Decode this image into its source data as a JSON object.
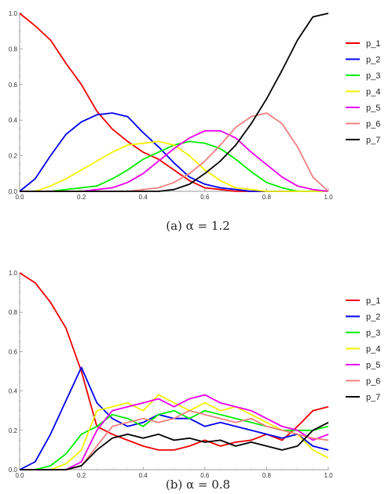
{
  "legend": [
    "p_1",
    "p_2",
    "p_3",
    "p_4",
    "p_5",
    "p_6",
    "p_7"
  ],
  "series_colors": [
    "#ee0000",
    "#0000ee",
    "#00ee00",
    "#f2f200",
    "#ee00ee",
    "#f08080",
    "#000000"
  ],
  "captions": [
    "(a)  α = 1.2",
    "(b)  α = 0.8"
  ],
  "chart_data": [
    {
      "type": "line",
      "xlim": [
        0,
        1.0
      ],
      "ylim": [
        0,
        1.0
      ],
      "x_ticks": [
        "0.0",
        "0.2",
        "0.4",
        "0.6",
        "0.8",
        "1.0"
      ],
      "y_ticks": [
        "0.0",
        "0.2",
        "0.4",
        "0.6",
        "0.8",
        "1.0"
      ],
      "grid": false,
      "legend_position": "right",
      "x": [
        0,
        0.05,
        0.1,
        0.15,
        0.2,
        0.25,
        0.3,
        0.35,
        0.4,
        0.45,
        0.5,
        0.55,
        0.6,
        0.65,
        0.7,
        0.75,
        0.8,
        0.85,
        0.9,
        0.95,
        1.0
      ],
      "series": [
        {
          "name": "p_1",
          "values": [
            1.0,
            0.93,
            0.85,
            0.72,
            0.6,
            0.45,
            0.35,
            0.28,
            0.22,
            0.18,
            0.12,
            0.06,
            0.02,
            0.01,
            0.0,
            0.0,
            0.0,
            0.0,
            0.0,
            0.0,
            0.0
          ]
        },
        {
          "name": "p_2",
          "values": [
            0.0,
            0.07,
            0.2,
            0.32,
            0.39,
            0.43,
            0.44,
            0.42,
            0.33,
            0.25,
            0.16,
            0.08,
            0.04,
            0.02,
            0.01,
            0.0,
            0.0,
            0.0,
            0.0,
            0.0,
            0.0
          ]
        },
        {
          "name": "p_3",
          "values": [
            0.0,
            0.0,
            0.0,
            0.01,
            0.02,
            0.03,
            0.07,
            0.12,
            0.18,
            0.22,
            0.26,
            0.28,
            0.27,
            0.24,
            0.18,
            0.11,
            0.05,
            0.02,
            0.0,
            0.0,
            0.0
          ]
        },
        {
          "name": "p_4",
          "values": [
            0.0,
            0.0,
            0.03,
            0.07,
            0.12,
            0.17,
            0.22,
            0.26,
            0.27,
            0.28,
            0.26,
            0.2,
            0.12,
            0.06,
            0.02,
            0.01,
            0.0,
            0.0,
            0.0,
            0.0,
            0.0
          ]
        },
        {
          "name": "p_5",
          "values": [
            0.0,
            0.0,
            0.0,
            0.0,
            0.0,
            0.01,
            0.02,
            0.05,
            0.1,
            0.17,
            0.24,
            0.3,
            0.34,
            0.34,
            0.3,
            0.22,
            0.15,
            0.08,
            0.03,
            0.01,
            0.0
          ]
        },
        {
          "name": "p_6",
          "values": [
            0.0,
            0.0,
            0.0,
            0.0,
            0.0,
            0.0,
            0.0,
            0.0,
            0.01,
            0.02,
            0.05,
            0.1,
            0.17,
            0.26,
            0.36,
            0.42,
            0.44,
            0.38,
            0.25,
            0.08,
            0.0
          ]
        },
        {
          "name": "p_7",
          "values": [
            0.0,
            0.0,
            0.0,
            0.0,
            0.0,
            0.0,
            0.0,
            0.0,
            0.0,
            0.0,
            0.01,
            0.04,
            0.1,
            0.17,
            0.26,
            0.38,
            0.52,
            0.68,
            0.85,
            0.98,
            1.0
          ]
        }
      ]
    },
    {
      "type": "line",
      "xlim": [
        0,
        1.0
      ],
      "ylim": [
        0,
        1.0
      ],
      "x_ticks": [
        "0.0",
        "0.2",
        "0.4",
        "0.6",
        "0.8",
        "1.0"
      ],
      "y_ticks": [
        "0.0",
        "0.2",
        "0.4",
        "0.6",
        "0.8",
        "1.0"
      ],
      "grid": false,
      "legend_position": "right",
      "x": [
        0,
        0.05,
        0.1,
        0.15,
        0.2,
        0.25,
        0.3,
        0.35,
        0.4,
        0.45,
        0.5,
        0.55,
        0.6,
        0.65,
        0.7,
        0.75,
        0.8,
        0.85,
        0.9,
        0.95,
        1.0
      ],
      "series": [
        {
          "name": "p_1",
          "values": [
            1.0,
            0.95,
            0.85,
            0.72,
            0.5,
            0.22,
            0.18,
            0.15,
            0.12,
            0.1,
            0.1,
            0.12,
            0.15,
            0.12,
            0.14,
            0.15,
            0.18,
            0.15,
            0.22,
            0.3,
            0.32
          ]
        },
        {
          "name": "p_2",
          "values": [
            0.0,
            0.04,
            0.18,
            0.35,
            0.52,
            0.34,
            0.26,
            0.22,
            0.24,
            0.28,
            0.26,
            0.26,
            0.22,
            0.24,
            0.22,
            0.2,
            0.18,
            0.16,
            0.18,
            0.12,
            0.1
          ]
        },
        {
          "name": "p_3",
          "values": [
            0.0,
            0.0,
            0.02,
            0.08,
            0.18,
            0.22,
            0.28,
            0.26,
            0.22,
            0.28,
            0.3,
            0.26,
            0.3,
            0.28,
            0.26,
            0.24,
            0.22,
            0.2,
            0.2,
            0.2,
            0.22
          ]
        },
        {
          "name": "p_4",
          "values": [
            0.0,
            0.0,
            0.0,
            0.03,
            0.1,
            0.3,
            0.32,
            0.34,
            0.3,
            0.38,
            0.34,
            0.3,
            0.34,
            0.3,
            0.32,
            0.28,
            0.24,
            0.2,
            0.18,
            0.1,
            0.06
          ]
        },
        {
          "name": "p_5",
          "values": [
            0.0,
            0.0,
            0.0,
            0.0,
            0.04,
            0.2,
            0.3,
            0.32,
            0.34,
            0.36,
            0.32,
            0.36,
            0.38,
            0.34,
            0.32,
            0.3,
            0.26,
            0.22,
            0.2,
            0.15,
            0.18
          ]
        },
        {
          "name": "p_6",
          "values": [
            0.0,
            0.0,
            0.0,
            0.0,
            0.02,
            0.12,
            0.22,
            0.24,
            0.26,
            0.24,
            0.26,
            0.3,
            0.28,
            0.26,
            0.24,
            0.26,
            0.22,
            0.2,
            0.18,
            0.16,
            0.15
          ]
        },
        {
          "name": "p_7",
          "values": [
            0.0,
            0.0,
            0.0,
            0.0,
            0.02,
            0.1,
            0.16,
            0.18,
            0.16,
            0.18,
            0.15,
            0.16,
            0.14,
            0.15,
            0.12,
            0.14,
            0.12,
            0.1,
            0.12,
            0.2,
            0.24
          ]
        }
      ]
    }
  ]
}
